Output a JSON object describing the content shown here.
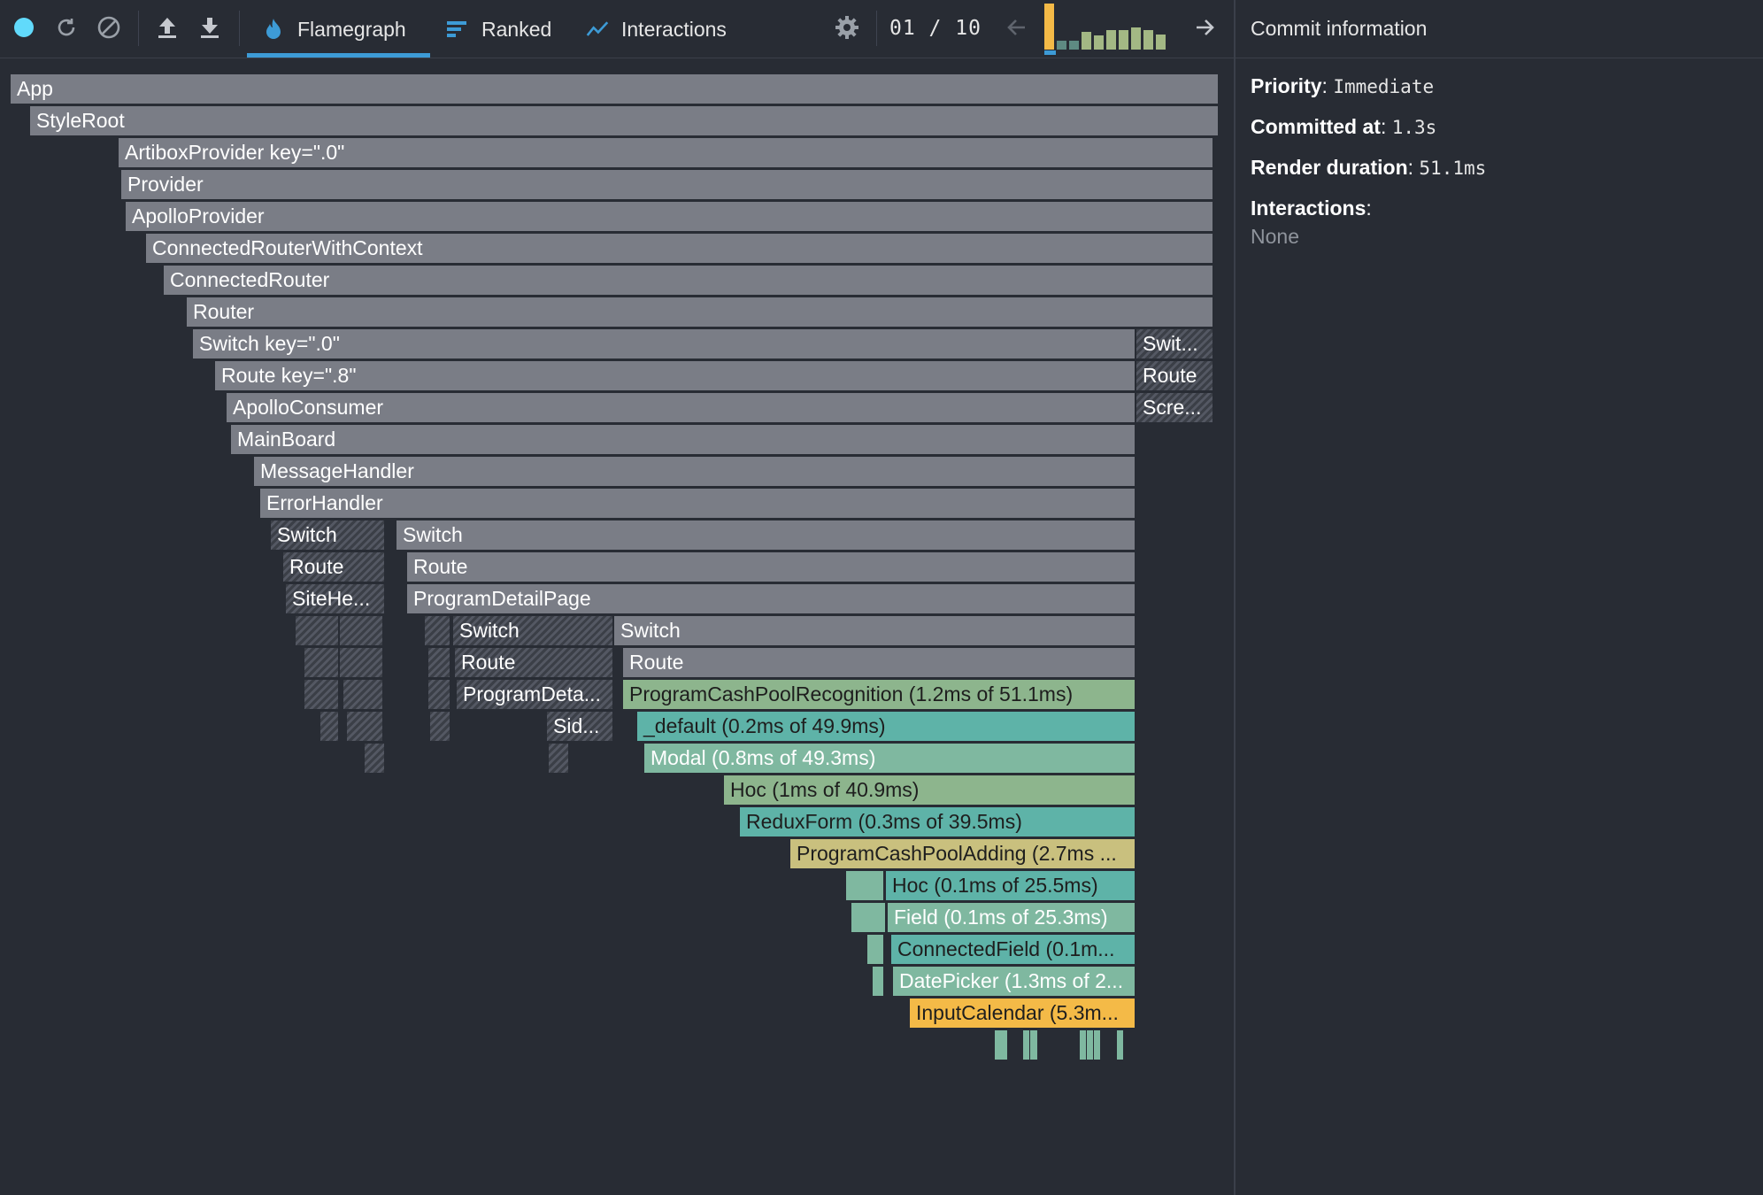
{
  "toolbar": {
    "icons": [
      "record-icon",
      "reload-icon",
      "clear-icon",
      "import-icon",
      "export-icon",
      "settings-icon",
      "prev-commit-icon",
      "next-commit-icon"
    ],
    "tabs": [
      {
        "label": "Flamegraph",
        "icon": "flame-icon",
        "active": true
      },
      {
        "label": "Ranked",
        "icon": "ranked-icon",
        "active": false
      },
      {
        "label": "Interactions",
        "icon": "interactions-icon",
        "active": false
      }
    ],
    "commit_counter": "01 / 10",
    "commit_durations_relative": [
      1.0,
      0.2,
      0.2,
      0.38,
      0.3,
      0.42,
      0.42,
      0.48,
      0.42,
      0.32
    ],
    "colors": {
      "accent": "#3d9bd6",
      "record": "#61dafb",
      "selected_commit": "#f4ba47",
      "commit": "#a3b884"
    }
  },
  "sidebar": {
    "title": "Commit information",
    "priority_label": "Priority",
    "priority_value": "Immediate",
    "committed_label": "Committed at",
    "committed_value": "1.3s",
    "render_label": "Render duration",
    "render_value": "51.1ms",
    "interactions_label": "Interactions",
    "interactions_value": "None"
  },
  "flamegraph": {
    "nodes": [
      {
        "label": "App"
      },
      {
        "label": "StyleRoot"
      },
      {
        "label": "ArtiboxProvider key=\".0\""
      },
      {
        "label": "Provider"
      },
      {
        "label": "ApolloProvider"
      },
      {
        "label": "ConnectedRouterWithContext"
      },
      {
        "label": "ConnectedRouter"
      },
      {
        "label": "Router"
      },
      {
        "label": "Switch key=\".0\""
      },
      {
        "label": "Swit..."
      },
      {
        "label": "Route key=\".8\""
      },
      {
        "label": "Route"
      },
      {
        "label": "ApolloConsumer"
      },
      {
        "label": "Scre..."
      },
      {
        "label": "MainBoard"
      },
      {
        "label": "MessageHandler"
      },
      {
        "label": "ErrorHandler"
      },
      {
        "label": "Switch"
      },
      {
        "label": "Switch"
      },
      {
        "label": "Route"
      },
      {
        "label": "Route"
      },
      {
        "label": "SiteHe..."
      },
      {
        "label": "ProgramDetailPage"
      },
      {
        "label": "Switch"
      },
      {
        "label": "Switch"
      },
      {
        "label": "Route"
      },
      {
        "label": "Route"
      },
      {
        "label": "ProgramDeta..."
      },
      {
        "label": "ProgramCashPoolRecognition (1.2ms of 51.1ms)"
      },
      {
        "label": "Sid..."
      },
      {
        "label": "_default (0.2ms of 49.9ms)"
      },
      {
        "label": "Modal (0.8ms of 49.3ms)"
      },
      {
        "label": "Hoc (1ms of 40.9ms)"
      },
      {
        "label": "ReduxForm (0.3ms of 39.5ms)"
      },
      {
        "label": "ProgramCashPoolAdding (2.7ms ..."
      },
      {
        "label": "Hoc (0.1ms of 25.5ms)"
      },
      {
        "label": "Field (0.1ms of 25.3ms)"
      },
      {
        "label": "ConnectedField (0.1m..."
      },
      {
        "label": "DatePicker (1.3ms of 2..."
      },
      {
        "label": "InputCalendar (5.3m..."
      }
    ]
  }
}
